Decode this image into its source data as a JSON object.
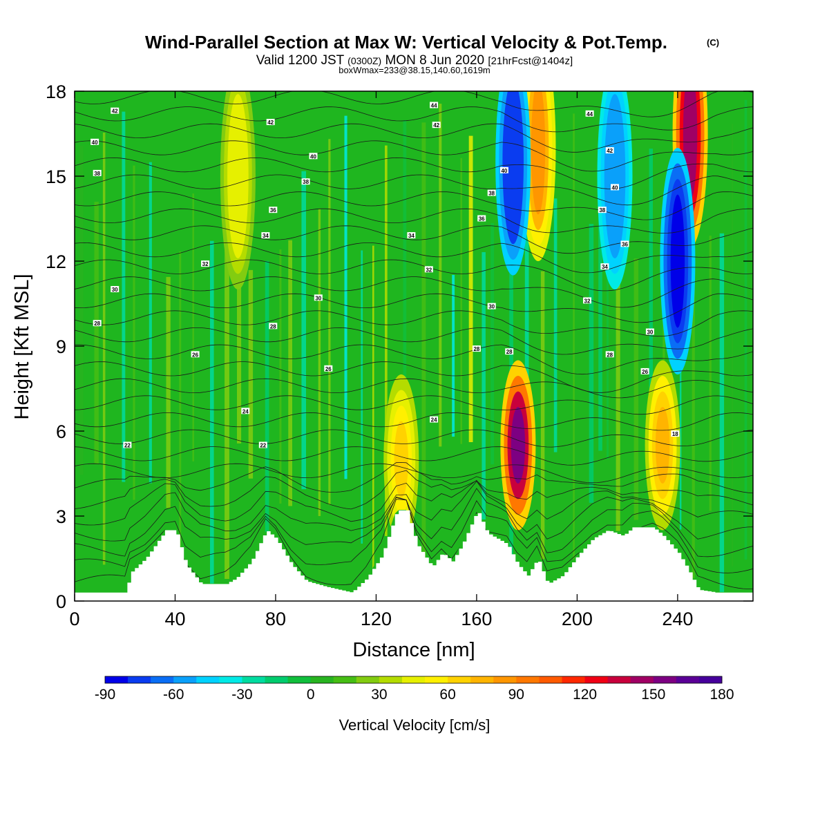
{
  "header": {
    "title": "Wind-Parallel Section at Max W: Vertical Velocity & Pot.Temp.",
    "title_mark": "(C)",
    "subtitle_a": "Valid 1200 JST",
    "subtitle_b": "(0300Z)",
    "subtitle_c": "MON 8 Jun 2020",
    "subtitle_d": "[21hrFcst@1404z]",
    "line3": "boxWmax=233@38.15,140.60,1619m"
  },
  "chart_data": {
    "type": "heatmap",
    "xlabel": "Distance [nm]",
    "ylabel": "Height [Kft MSL]",
    "xlim": [
      0,
      270
    ],
    "ylim": [
      0,
      18
    ],
    "xticks": [
      "0",
      "40",
      "80",
      "120",
      "160",
      "200",
      "240"
    ],
    "xtick_values": [
      0,
      40,
      80,
      120,
      160,
      200,
      240
    ],
    "yticks": [
      "0",
      "3",
      "6",
      "9",
      "12",
      "15",
      "18"
    ],
    "ytick_values": [
      0,
      3,
      6,
      9,
      12,
      15,
      18
    ],
    "colorbar": {
      "label": "Vertical Velocity [cm/s]",
      "min": -90,
      "max": 180,
      "step": 10,
      "tick_labels": [
        "-90",
        "-60",
        "-30",
        "0",
        "30",
        "60",
        "90",
        "120",
        "150",
        "180"
      ],
      "tick_values": [
        -90,
        -60,
        -30,
        0,
        30,
        60,
        90,
        120,
        150,
        180
      ],
      "colors": [
        "#0000e8",
        "#0a3cf0",
        "#0a6ef5",
        "#0aa0fa",
        "#00d2ff",
        "#00eae6",
        "#00dca0",
        "#00cc6e",
        "#10bf3c",
        "#28b420",
        "#46be14",
        "#82cc10",
        "#b4dc00",
        "#e6f000",
        "#fff000",
        "#ffd200",
        "#ffb400",
        "#ff9600",
        "#ff7800",
        "#ff5a00",
        "#ff2800",
        "#f00014",
        "#c8003c",
        "#a00064",
        "#7d0082",
        "#5a0096",
        "#46009b"
      ]
    },
    "terrain_kft": [
      [
        0,
        0.3
      ],
      [
        20,
        0.3
      ],
      [
        22,
        1.0
      ],
      [
        28,
        1.5
      ],
      [
        36,
        2.5
      ],
      [
        40,
        2.5
      ],
      [
        44,
        1.3
      ],
      [
        50,
        0.6
      ],
      [
        60,
        0.6
      ],
      [
        64,
        0.8
      ],
      [
        70,
        1.4
      ],
      [
        76,
        2.5
      ],
      [
        80,
        2.2
      ],
      [
        86,
        1.3
      ],
      [
        92,
        0.7
      ],
      [
        100,
        0.5
      ],
      [
        110,
        0.3
      ],
      [
        116,
        0.8
      ],
      [
        122,
        1.6
      ],
      [
        128,
        3.2
      ],
      [
        132,
        3.2
      ],
      [
        136,
        2.0
      ],
      [
        142,
        1.2
      ],
      [
        146,
        1.7
      ],
      [
        150,
        1.4
      ],
      [
        154,
        2.0
      ],
      [
        160,
        3.2
      ],
      [
        164,
        2.4
      ],
      [
        172,
        2.0
      ],
      [
        176,
        1.3
      ],
      [
        180,
        0.9
      ],
      [
        184,
        1.5
      ],
      [
        188,
        0.6
      ],
      [
        194,
        0.9
      ],
      [
        200,
        1.6
      ],
      [
        206,
        2.2
      ],
      [
        212,
        2.5
      ],
      [
        218,
        2.3
      ],
      [
        222,
        2.6
      ],
      [
        230,
        2.6
      ],
      [
        234,
        2.3
      ],
      [
        240,
        1.7
      ],
      [
        244,
        1.1
      ],
      [
        248,
        0.4
      ],
      [
        255,
        0.3
      ],
      [
        270,
        0.3
      ]
    ],
    "w_features": [
      {
        "x": 176.5,
        "y": 5.5,
        "w_cms": 150
      },
      {
        "x": 184.5,
        "y": 16.0,
        "w_cms": 80
      },
      {
        "x": 174.5,
        "y": 15.5,
        "w_cms": -80
      },
      {
        "x": 245,
        "y": 16.5,
        "w_cms": 140
      },
      {
        "x": 240,
        "y": 12.0,
        "w_cms": -90
      },
      {
        "x": 234,
        "y": 5.5,
        "w_cms": 75
      },
      {
        "x": 130,
        "y": 5.0,
        "w_cms": 60
      },
      {
        "x": 65,
        "y": 15.0,
        "w_cms": 45
      },
      {
        "x": 215,
        "y": 15.0,
        "w_cms": -60
      }
    ],
    "theta_contour_labels": [
      {
        "text": "42",
        "x": 16,
        "y": 17.3
      },
      {
        "text": "40",
        "x": 8,
        "y": 16.2
      },
      {
        "text": "38",
        "x": 9,
        "y": 15.1
      },
      {
        "text": "44",
        "x": 143,
        "y": 17.5
      },
      {
        "text": "42",
        "x": 78,
        "y": 16.9
      },
      {
        "text": "42",
        "x": 144,
        "y": 16.8
      },
      {
        "text": "44",
        "x": 205,
        "y": 17.2
      },
      {
        "text": "40",
        "x": 95,
        "y": 15.7
      },
      {
        "text": "40",
        "x": 171,
        "y": 15.2
      },
      {
        "text": "42",
        "x": 213,
        "y": 15.9
      },
      {
        "text": "38",
        "x": 92,
        "y": 14.8
      },
      {
        "text": "38",
        "x": 166,
        "y": 14.4
      },
      {
        "text": "40",
        "x": 215,
        "y": 14.6
      },
      {
        "text": "36",
        "x": 79,
        "y": 13.8
      },
      {
        "text": "36",
        "x": 162,
        "y": 13.5
      },
      {
        "text": "38",
        "x": 210,
        "y": 13.8
      },
      {
        "text": "34",
        "x": 76,
        "y": 12.9
      },
      {
        "text": "34",
        "x": 134,
        "y": 12.9
      },
      {
        "text": "36",
        "x": 219,
        "y": 12.6
      },
      {
        "text": "32",
        "x": 52,
        "y": 11.9
      },
      {
        "text": "32",
        "x": 141,
        "y": 11.7
      },
      {
        "text": "34",
        "x": 211,
        "y": 11.8
      },
      {
        "text": "30",
        "x": 16,
        "y": 11.0
      },
      {
        "text": "30",
        "x": 97,
        "y": 10.7
      },
      {
        "text": "30",
        "x": 166,
        "y": 10.4
      },
      {
        "text": "32",
        "x": 204,
        "y": 10.6
      },
      {
        "text": "28",
        "x": 9,
        "y": 9.8
      },
      {
        "text": "28",
        "x": 79,
        "y": 9.7
      },
      {
        "text": "30",
        "x": 229,
        "y": 9.5
      },
      {
        "text": "26",
        "x": 48,
        "y": 8.7
      },
      {
        "text": "28",
        "x": 160,
        "y": 8.9
      },
      {
        "text": "28",
        "x": 173,
        "y": 8.8
      },
      {
        "text": "28",
        "x": 213,
        "y": 8.7
      },
      {
        "text": "26",
        "x": 101,
        "y": 8.2
      },
      {
        "text": "26",
        "x": 227,
        "y": 8.1
      },
      {
        "text": "24",
        "x": 68,
        "y": 6.7
      },
      {
        "text": "24",
        "x": 143,
        "y": 6.4
      },
      {
        "text": "22",
        "x": 21,
        "y": 5.5
      },
      {
        "text": "22",
        "x": 75,
        "y": 5.5
      },
      {
        "text": "18",
        "x": 239,
        "y": 5.9
      }
    ]
  }
}
